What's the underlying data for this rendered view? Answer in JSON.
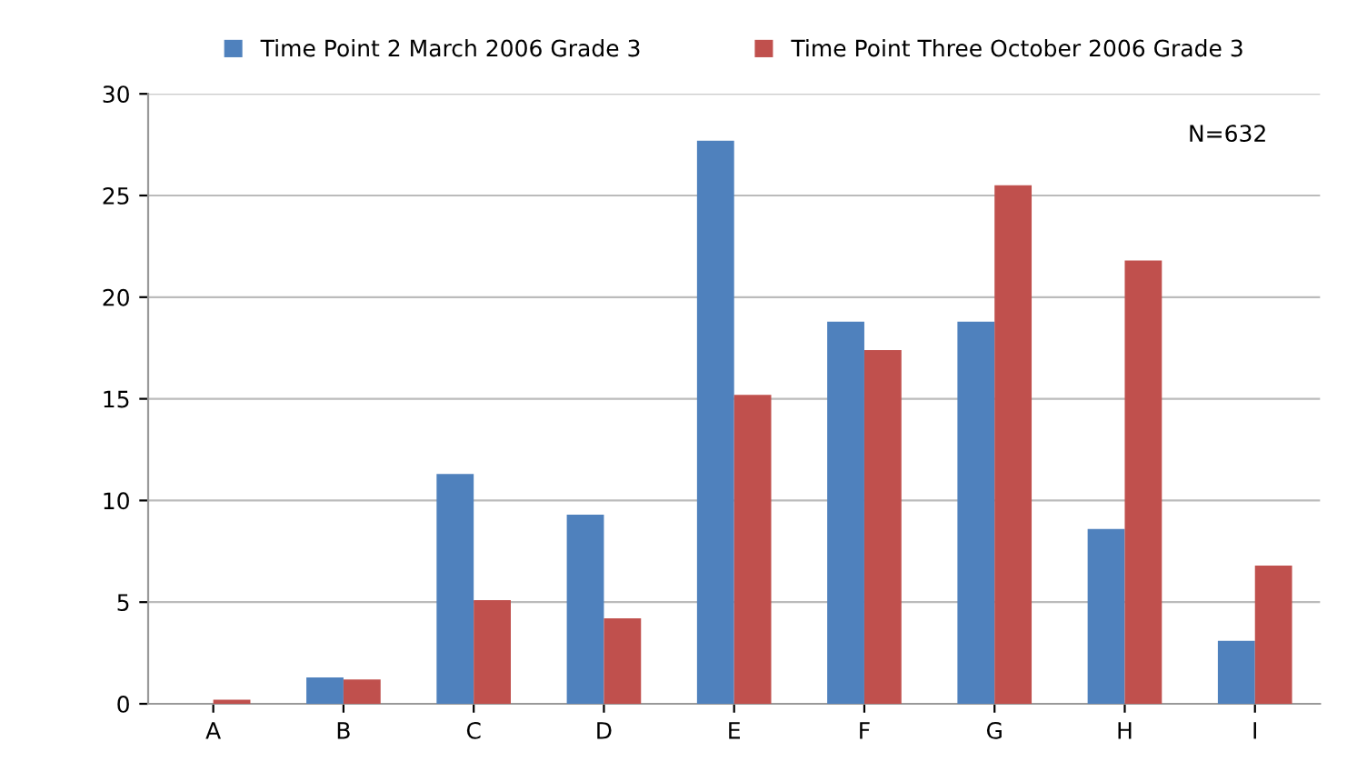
{
  "chart_data": {
    "type": "bar",
    "categories": [
      "A",
      "B",
      "C",
      "D",
      "E",
      "F",
      "G",
      "H",
      "I"
    ],
    "series": [
      {
        "name": "Time Point 2 March 2006 Grade 3",
        "color": "#4f81bd",
        "values": [
          0,
          1.3,
          11.3,
          9.3,
          27.7,
          18.8,
          18.8,
          8.6,
          3.1
        ]
      },
      {
        "name": "Time Point Three October 2006 Grade 3",
        "color": "#c0504d",
        "values": [
          0.2,
          1.2,
          5.1,
          4.2,
          15.2,
          17.4,
          25.5,
          21.8,
          6.8
        ]
      }
    ],
    "ylim": [
      0,
      30
    ],
    "yticks": [
      0,
      5,
      10,
      15,
      20,
      25,
      30
    ],
    "grid": "y",
    "legend": "top",
    "annotations": [
      "N=632"
    ]
  }
}
